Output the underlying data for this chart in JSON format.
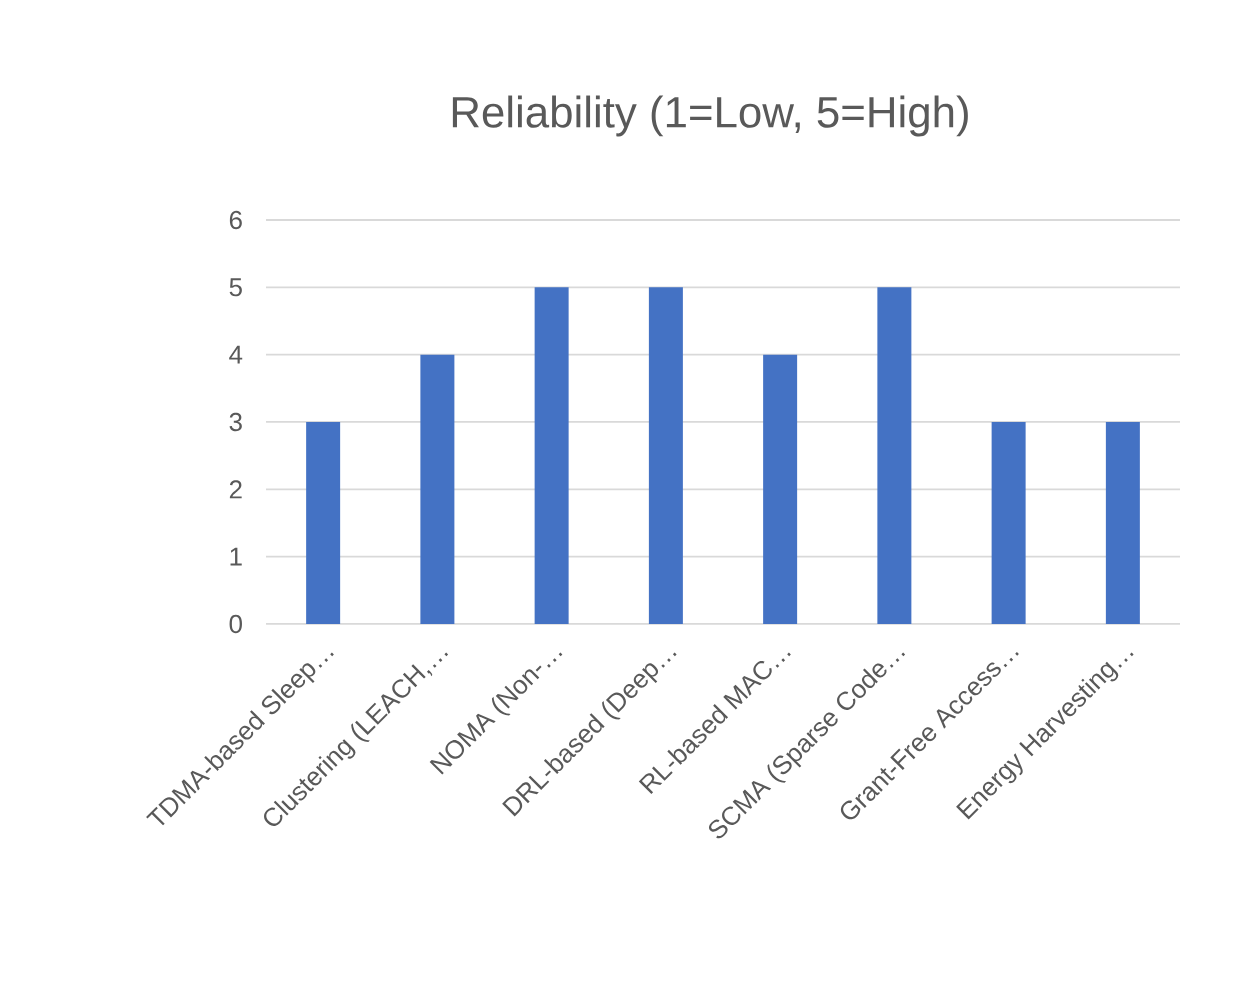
{
  "chart_data": {
    "type": "bar",
    "title": "Reliability (1=Low, 5=High)",
    "categories": [
      "TDMA-based Sleep…",
      "Clustering (LEACH,…",
      "NOMA (Non-…",
      "DRL-based (Deep…",
      "RL-based MAC…",
      "SCMA (Sparse Code…",
      "Grant-Free Access…",
      "Energy Harvesting…"
    ],
    "values": [
      3,
      4,
      5,
      5,
      4,
      5,
      3,
      3
    ],
    "color": "#4472c4",
    "ylim": [
      0,
      6
    ],
    "yticks": [
      0,
      1,
      2,
      3,
      4,
      5,
      6
    ],
    "grid": "y"
  }
}
